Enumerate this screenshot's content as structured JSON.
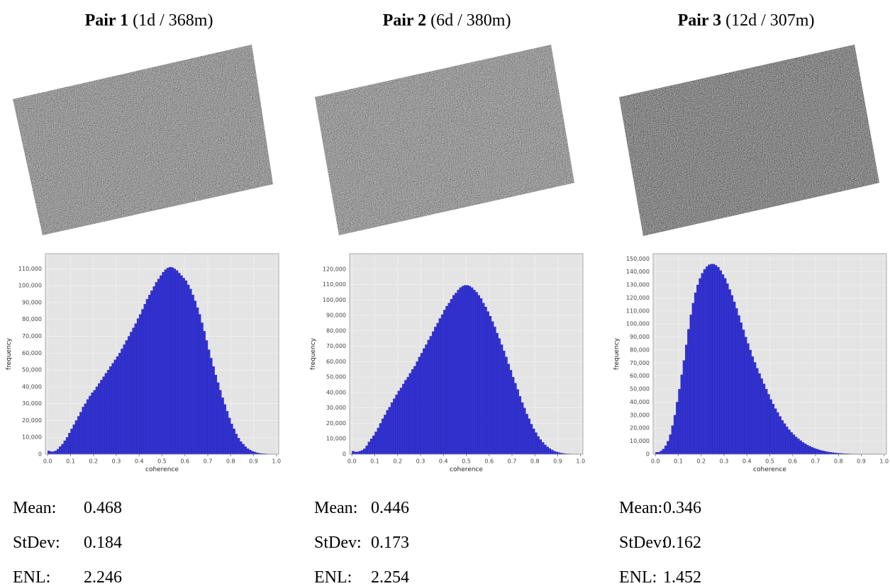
{
  "chart_data": [
    {
      "type": "histogram",
      "title": "Pair 1",
      "subtitle": "(1d / 368m)",
      "xlabel": "coherence",
      "ylabel": "frequency",
      "color": "#3232d2",
      "grid": true,
      "xlim": [
        -0.01,
        1.01
      ],
      "ylim": [
        0,
        119000
      ],
      "xticks": [
        {
          "value": 0,
          "label": "0.0"
        },
        0.1,
        0.2,
        0.3,
        0.4,
        0.5,
        0.6,
        0.7,
        0.8,
        0.9,
        {
          "value": 1,
          "label": "1.0"
        }
      ],
      "yticks": [
        0,
        {
          "value": 10000,
          "label": "10,000"
        },
        {
          "value": 20000,
          "label": "20,000"
        },
        {
          "value": 30000,
          "label": "30,000"
        },
        {
          "value": 40000,
          "label": "40,000"
        },
        {
          "value": 50000,
          "label": "50,000"
        },
        {
          "value": 60000,
          "label": "60,000"
        },
        {
          "value": 70000,
          "label": "70,000"
        },
        {
          "value": 80000,
          "label": "80,000"
        },
        {
          "value": 90000,
          "label": "90,000"
        },
        {
          "value": 100000,
          "label": "100,000"
        },
        {
          "value": 110000,
          "label": "110,000"
        }
      ],
      "bins": [
        0,
        0.01,
        0.02,
        0.03,
        0.04,
        0.05,
        0.06,
        0.07,
        0.08,
        0.09,
        0.1,
        0.11,
        0.12,
        0.13,
        0.14,
        0.15,
        0.16,
        0.17,
        0.18,
        0.19,
        0.2,
        0.21,
        0.22,
        0.23,
        0.24,
        0.25,
        0.26,
        0.27,
        0.28,
        0.29,
        0.3,
        0.31,
        0.32,
        0.33,
        0.34,
        0.35,
        0.36,
        0.37,
        0.38,
        0.39,
        0.4,
        0.41,
        0.42,
        0.43,
        0.44,
        0.45,
        0.46,
        0.47,
        0.48,
        0.49,
        0.5,
        0.51,
        0.52,
        0.53,
        0.54,
        0.55,
        0.56,
        0.57,
        0.58,
        0.59,
        0.6,
        0.61,
        0.62,
        0.63,
        0.64,
        0.65,
        0.66,
        0.67,
        0.68,
        0.69,
        0.7,
        0.71,
        0.72,
        0.73,
        0.74,
        0.75,
        0.76,
        0.77,
        0.78,
        0.79,
        0.8,
        0.81,
        0.82,
        0.83,
        0.84,
        0.85,
        0.86,
        0.87,
        0.88,
        0.89,
        0.9,
        0.91,
        0.92,
        0.93,
        0.94,
        0.95,
        0.96,
        0.97,
        0.98,
        0.99,
        1
      ],
      "values": [
        2000,
        1500,
        1500,
        2000,
        3000,
        4500,
        6000,
        8000,
        10000,
        12500,
        15000,
        17500,
        20000,
        22500,
        25000,
        28000,
        30000,
        32500,
        34500,
        36500,
        38000,
        40000,
        42000,
        44000,
        46000,
        48000,
        50000,
        52000,
        54000,
        56000,
        58000,
        60000,
        62500,
        65000,
        67500,
        70000,
        72500,
        75000,
        77500,
        80500,
        83000,
        86000,
        89000,
        92000,
        94500,
        97000,
        99500,
        102000,
        104000,
        106000,
        108000,
        109500,
        110500,
        111000,
        110800,
        110000,
        109000,
        107500,
        106000,
        104500,
        103000,
        100500,
        98000,
        94500,
        91000,
        87000,
        83000,
        78000,
        73000,
        67500,
        62000,
        57000,
        52000,
        47000,
        42500,
        38000,
        33500,
        29500,
        25500,
        21500,
        18000,
        15000,
        12000,
        9500,
        7500,
        6000,
        4500,
        3300,
        2500,
        1800,
        1300,
        900,
        600,
        400,
        300,
        200,
        100,
        50,
        20,
        0
      ],
      "stats": [
        {
          "label": "Mean:",
          "value": 0.468
        },
        {
          "label": "StDev:",
          "value": 0.184
        },
        {
          "label": "ENL:",
          "value": 2.246
        }
      ]
    },
    {
      "type": "histogram",
      "title": "Pair 2",
      "subtitle": "(6d / 380m)",
      "xlabel": "coherence",
      "ylabel": "frequency",
      "color": "#3232d2",
      "grid": true,
      "xlim": [
        -0.01,
        1.01
      ],
      "ylim": [
        0,
        130000
      ],
      "xticks": [
        {
          "value": 0,
          "label": "0.0"
        },
        0.1,
        0.2,
        0.3,
        0.4,
        0.5,
        0.6,
        0.7,
        0.8,
        0.9,
        {
          "value": 1,
          "label": "1.0"
        }
      ],
      "yticks": [
        0,
        {
          "value": 10000,
          "label": "10,000"
        },
        {
          "value": 20000,
          "label": "20,000"
        },
        {
          "value": 30000,
          "label": "30,000"
        },
        {
          "value": 40000,
          "label": "40,000"
        },
        {
          "value": 50000,
          "label": "50,000"
        },
        {
          "value": 60000,
          "label": "60,000"
        },
        {
          "value": 70000,
          "label": "70,000"
        },
        {
          "value": 80000,
          "label": "80,000"
        },
        {
          "value": 90000,
          "label": "90,000"
        },
        {
          "value": 100000,
          "label": "100,000"
        },
        {
          "value": 110000,
          "label": "110,000"
        },
        {
          "value": 120000,
          "label": "120,000"
        }
      ],
      "bins": [
        0,
        0.01,
        0.02,
        0.03,
        0.04,
        0.05,
        0.06,
        0.07,
        0.08,
        0.09,
        0.1,
        0.11,
        0.12,
        0.13,
        0.14,
        0.15,
        0.16,
        0.17,
        0.18,
        0.19,
        0.2,
        0.21,
        0.22,
        0.23,
        0.24,
        0.25,
        0.26,
        0.27,
        0.28,
        0.29,
        0.3,
        0.31,
        0.32,
        0.33,
        0.34,
        0.35,
        0.36,
        0.37,
        0.38,
        0.39,
        0.4,
        0.41,
        0.42,
        0.43,
        0.44,
        0.45,
        0.46,
        0.47,
        0.48,
        0.49,
        0.5,
        0.51,
        0.52,
        0.53,
        0.54,
        0.55,
        0.56,
        0.57,
        0.58,
        0.59,
        0.6,
        0.61,
        0.62,
        0.63,
        0.64,
        0.65,
        0.66,
        0.67,
        0.68,
        0.69,
        0.7,
        0.71,
        0.72,
        0.73,
        0.74,
        0.75,
        0.76,
        0.77,
        0.78,
        0.79,
        0.8,
        0.81,
        0.82,
        0.83,
        0.84,
        0.85,
        0.86,
        0.87,
        0.88,
        0.89,
        0.9,
        0.91,
        0.92,
        0.93,
        0.94,
        0.95,
        0.96,
        0.97,
        0.98,
        0.99,
        1
      ],
      "values": [
        2000,
        1500,
        1500,
        2000,
        2500,
        3500,
        5500,
        8000,
        10000,
        12000,
        14500,
        17000,
        20000,
        23000,
        25500,
        28500,
        30500,
        33500,
        36000,
        38500,
        41000,
        43000,
        45500,
        48000,
        50000,
        52500,
        55000,
        57000,
        60000,
        63000,
        65500,
        68500,
        71000,
        74000,
        76500,
        79500,
        82500,
        85000,
        88000,
        90500,
        93500,
        96000,
        98000,
        100500,
        103000,
        104500,
        106500,
        108000,
        109000,
        109500,
        109500,
        109000,
        108000,
        106500,
        105000,
        103000,
        101000,
        98000,
        95500,
        92500,
        89500,
        86000,
        82500,
        78500,
        75000,
        71000,
        67000,
        63000,
        58500,
        54500,
        50000,
        46000,
        42000,
        37500,
        33500,
        30000,
        26000,
        23000,
        19500,
        16500,
        14000,
        11500,
        9500,
        7700,
        6100,
        4800,
        3700,
        2800,
        2000,
        1500,
        1100,
        750,
        500,
        330,
        200,
        120,
        65,
        30,
        10,
        0
      ],
      "stats": [
        {
          "label": "Mean:",
          "value": 0.446
        },
        {
          "label": "StDev:",
          "value": 0.173
        },
        {
          "label": "ENL:",
          "value": 2.254
        }
      ]
    },
    {
      "type": "histogram",
      "title": "Pair 3",
      "subtitle": "(12d / 307m)",
      "xlabel": "coherence",
      "ylabel": "frequency",
      "color": "#3232d2",
      "grid": true,
      "xlim": [
        -0.01,
        1.01
      ],
      "ylim": [
        0,
        154000
      ],
      "xticks": [
        {
          "value": 0,
          "label": "0.0"
        },
        0.1,
        0.2,
        0.3,
        0.4,
        0.5,
        0.6,
        0.7,
        0.8,
        0.9,
        {
          "value": 1,
          "label": "1.0"
        }
      ],
      "yticks": [
        0,
        {
          "value": 10000,
          "label": "10,000"
        },
        {
          "value": 20000,
          "label": "20,000"
        },
        {
          "value": 30000,
          "label": "30,000"
        },
        {
          "value": 40000,
          "label": "40,000"
        },
        {
          "value": 50000,
          "label": "50,000"
        },
        {
          "value": 60000,
          "label": "60,000"
        },
        {
          "value": 70000,
          "label": "70,000"
        },
        {
          "value": 80000,
          "label": "80,000"
        },
        {
          "value": 90000,
          "label": "90,000"
        },
        {
          "value": 100000,
          "label": "100,000"
        },
        {
          "value": 110000,
          "label": "110,000"
        },
        {
          "value": 120000,
          "label": "120,000"
        },
        {
          "value": 130000,
          "label": "130,000"
        },
        {
          "value": 140000,
          "label": "140,000"
        },
        {
          "value": 150000,
          "label": "150,000"
        }
      ],
      "bins": [
        0,
        0.01,
        0.02,
        0.03,
        0.04,
        0.05,
        0.06,
        0.07,
        0.08,
        0.09,
        0.1,
        0.11,
        0.12,
        0.13,
        0.14,
        0.15,
        0.16,
        0.17,
        0.18,
        0.19,
        0.2,
        0.21,
        0.22,
        0.23,
        0.24,
        0.25,
        0.26,
        0.27,
        0.28,
        0.29,
        0.3,
        0.31,
        0.32,
        0.33,
        0.34,
        0.35,
        0.36,
        0.37,
        0.38,
        0.39,
        0.4,
        0.41,
        0.42,
        0.43,
        0.44,
        0.45,
        0.46,
        0.47,
        0.48,
        0.49,
        0.5,
        0.51,
        0.52,
        0.53,
        0.54,
        0.55,
        0.56,
        0.57,
        0.58,
        0.59,
        0.6,
        0.61,
        0.62,
        0.63,
        0.64,
        0.65,
        0.66,
        0.67,
        0.68,
        0.69,
        0.7,
        0.71,
        0.72,
        0.73,
        0.74,
        0.75,
        0.76,
        0.77,
        0.78,
        0.79,
        0.8,
        0.81,
        0.82,
        0.83,
        0.84,
        0.85,
        0.86,
        0.87,
        0.88,
        0.89,
        0.9,
        0.91,
        0.92,
        0.93,
        0.94,
        0.95,
        0.96,
        0.97,
        0.98,
        0.99,
        1
      ],
      "values": [
        1500,
        1500,
        2500,
        4000,
        6500,
        10000,
        15000,
        22000,
        30000,
        40000,
        50000,
        61000,
        72000,
        84000,
        96000,
        107000,
        116000,
        124000,
        130000,
        135000,
        139000,
        142000,
        144000,
        145500,
        146000,
        146000,
        145000,
        143500,
        141000,
        138000,
        135000,
        131000,
        126500,
        122000,
        117000,
        112000,
        106500,
        101000,
        95500,
        90000,
        85000,
        80000,
        75000,
        70500,
        66000,
        62000,
        58000,
        54000,
        50000,
        46000,
        42000,
        38500,
        35000,
        32000,
        29000,
        26000,
        23500,
        21000,
        18800,
        16800,
        15000,
        13300,
        11800,
        10400,
        9100,
        8000,
        7000,
        6100,
        5300,
        4600,
        4000,
        3400,
        2900,
        2500,
        2100,
        1800,
        1500,
        1250,
        1050,
        850,
        700,
        580,
        470,
        380,
        300,
        240,
        190,
        150,
        120,
        100,
        80,
        60,
        45,
        35,
        25,
        20,
        15,
        10,
        5,
        0
      ],
      "stats": [
        {
          "label": "Mean:",
          "value": 0.346
        },
        {
          "label": "StDev:",
          "value": 0.162
        },
        {
          "label": "ENL:",
          "value": 1.452
        }
      ]
    }
  ]
}
